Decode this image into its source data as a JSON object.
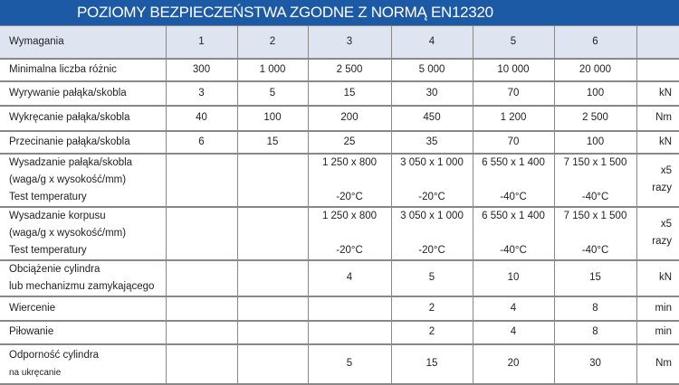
{
  "title": "POZIOMY BEZPIECZEŃSTWA ZGODNE  Z NORMĄ EN12320",
  "header": [
    "Wymagania",
    "1",
    "2",
    "3",
    "4",
    "5",
    "6",
    ""
  ],
  "rows": [
    {
      "label": [
        "Minimalna liczba różnic"
      ],
      "cells": [
        [
          "300"
        ],
        [
          "1 000"
        ],
        [
          "2 500"
        ],
        [
          "5 000"
        ],
        [
          "10 000"
        ],
        [
          "20 000"
        ]
      ],
      "unit": [
        ""
      ],
      "h": 25
    },
    {
      "label": [
        "Wyrywanie pałąka/skobla"
      ],
      "cells": [
        [
          "3"
        ],
        [
          "5"
        ],
        [
          "15"
        ],
        [
          "30"
        ],
        [
          "70"
        ],
        [
          "100"
        ]
      ],
      "unit": [
        "kN"
      ],
      "h": 27
    },
    {
      "label": [
        "Wykręcanie pałąka/skobla"
      ],
      "cells": [
        [
          "40"
        ],
        [
          "100"
        ],
        [
          "200"
        ],
        [
          "450"
        ],
        [
          "1 200"
        ],
        [
          "2 500"
        ]
      ],
      "unit": [
        "Nm"
      ],
      "h": 28
    },
    {
      "label": [
        "Przecinanie pałąka/skobla"
      ],
      "cells": [
        [
          "6"
        ],
        [
          "15"
        ],
        [
          "25"
        ],
        [
          "35"
        ],
        [
          "70"
        ],
        [
          "100"
        ]
      ],
      "unit": [
        "kN"
      ],
      "h": 25
    },
    {
      "label": [
        "Wysadzanie pałąka/skobla",
        "(waga/g x wysokość/mm)",
        "Test temperatury"
      ],
      "cells": [
        [
          ""
        ],
        [
          ""
        ],
        [
          "1 250 x 800",
          "",
          "-20°C"
        ],
        [
          "3 050 x 1 000",
          "",
          "-20°C"
        ],
        [
          "6 550 x 1 400",
          "",
          "-40°C"
        ],
        [
          "7 150 x 1 500",
          "",
          "-40°C"
        ]
      ],
      "unit": [
        "x5",
        "razy"
      ],
      "h": 53
    },
    {
      "label": [
        "Wysadzanie korpusu",
        "(waga/g x wysokość/mm)",
        "Test temperatury"
      ],
      "cells": [
        [
          ""
        ],
        [
          ""
        ],
        [
          "1 250 x 800",
          "",
          "-20°C"
        ],
        [
          "3 050 x 1 000",
          "",
          "-20°C"
        ],
        [
          "6 550 x 1 400",
          "",
          "-40°C"
        ],
        [
          "7 150 x 1 500",
          "",
          "-40°C"
        ]
      ],
      "unit": [
        "x5",
        "razy"
      ],
      "h": 55
    },
    {
      "label": [
        "Obciążenie cylindra",
        "lub mechanizmu zamykającego"
      ],
      "cells": [
        [
          ""
        ],
        [
          ""
        ],
        [
          "4"
        ],
        [
          "5"
        ],
        [
          "10"
        ],
        [
          "15"
        ]
      ],
      "unit": [
        "kN"
      ],
      "h": 40
    },
    {
      "label": [
        "Wiercenie"
      ],
      "cells": [
        [
          ""
        ],
        [
          ""
        ],
        [
          ""
        ],
        [
          "2"
        ],
        [
          "4"
        ],
        [
          "8"
        ]
      ],
      "unit": [
        "min"
      ],
      "h": 27
    },
    {
      "label": [
        "Piłowanie"
      ],
      "cells": [
        [
          ""
        ],
        [
          ""
        ],
        [
          ""
        ],
        [
          "2"
        ],
        [
          "4"
        ],
        [
          "8"
        ]
      ],
      "unit": [
        "min"
      ],
      "h": 26
    },
    {
      "label": [
        "Odporność cylindra",
        "na ukręcanie"
      ],
      "cells": [
        [
          ""
        ],
        [
          ""
        ],
        [
          "5"
        ],
        [
          "15"
        ],
        [
          "20"
        ],
        [
          "30"
        ]
      ],
      "unit": [
        "Nm"
      ],
      "h": 44
    }
  ]
}
